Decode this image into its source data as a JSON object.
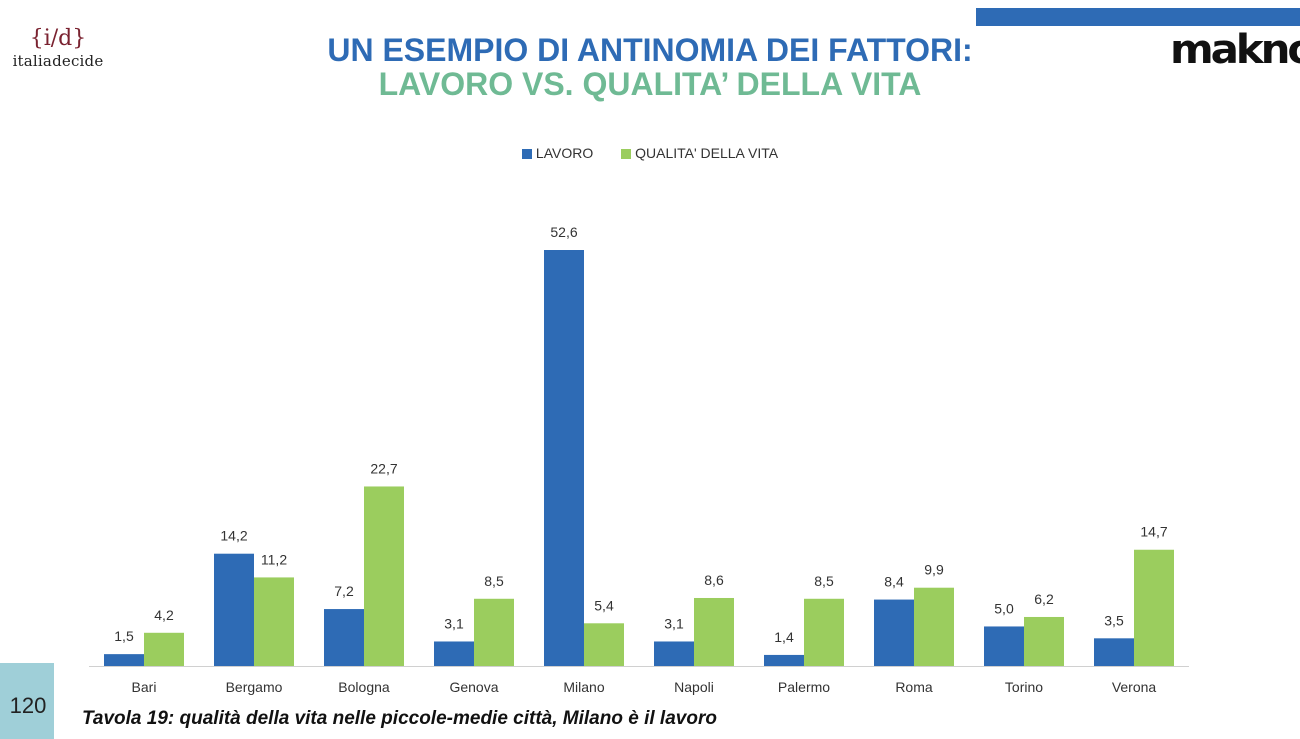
{
  "header": {
    "logo_left_mark": "{i/d}",
    "logo_left_word": "italiadecide",
    "logo_right": "makno",
    "title_line1": "UN ESEMPIO DI ANTINOMIA DEI FATTORI:",
    "title_line2": "LAVORO VS. QUALITA’ DELLA VITA"
  },
  "colors": {
    "series_a": "#2e6bb5",
    "series_b": "#9bcd5e",
    "title_a": "#2e6bb5",
    "title_b": "#6fba94"
  },
  "chart_data": {
    "type": "bar",
    "title": "",
    "xlabel": "",
    "ylabel": "",
    "legend": "top-center",
    "grid": false,
    "ylim": [
      0,
      60
    ],
    "categories": [
      "Bari",
      "Bergamo",
      "Bologna",
      "Genova",
      "Milano",
      "Napoli",
      "Palermo",
      "Roma",
      "Torino",
      "Verona"
    ],
    "series": [
      {
        "name": "LAVORO",
        "values": [
          1.5,
          14.2,
          7.2,
          3.1,
          52.6,
          3.1,
          1.4,
          8.4,
          5.0,
          3.5
        ],
        "labels": [
          "1,5",
          "14,2",
          "7,2",
          "3,1",
          "52,6",
          "3,1",
          "1,4",
          "8,4",
          "5,0",
          "3,5"
        ]
      },
      {
        "name": "QUALITA' DELLA VITA",
        "values": [
          4.2,
          11.2,
          22.7,
          8.5,
          5.4,
          8.6,
          8.5,
          9.9,
          6.2,
          14.7
        ],
        "labels": [
          "4,2",
          "11,2",
          "22,7",
          "8,5",
          "5,4",
          "8,6",
          "8,5",
          "9,9",
          "6,2",
          "14,7"
        ]
      }
    ]
  },
  "footer": {
    "page_number": "120",
    "caption": "Tavola 19: qualità della vita nelle piccole-medie città, Milano è il lavoro"
  }
}
